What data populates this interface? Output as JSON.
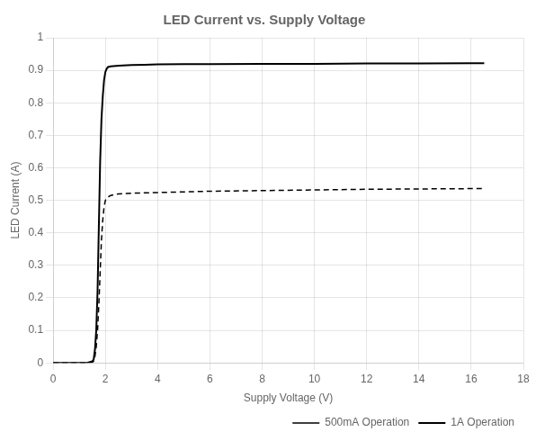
{
  "chart_data": {
    "type": "line",
    "title": "LED Current vs. Supply Voltage",
    "x_label": "Supply Voltage (V)",
    "y_label": "LED Current (A)",
    "xlim": [
      0,
      18
    ],
    "ylim": [
      0,
      1
    ],
    "xticks": [
      0,
      2,
      4,
      6,
      8,
      10,
      12,
      14,
      16,
      18
    ],
    "yticks": [
      0,
      0.1,
      0.2,
      0.3,
      0.4,
      0.5,
      0.6,
      0.7,
      0.8,
      0.9,
      1
    ],
    "grid": true,
    "legend": "lower right",
    "series": [
      {
        "name": "500mA Operation",
        "color": "#000000",
        "line_style": "dashed",
        "x": [
          0,
          1.3,
          1.5,
          1.55,
          1.6,
          1.65,
          1.7,
          1.75,
          1.8,
          1.85,
          1.9,
          1.95,
          2.0,
          2.1,
          2.2,
          2.5,
          3.0,
          4.0,
          5.0,
          6.0,
          8.0,
          10.0,
          12.0,
          14.0,
          16.0,
          16.5
        ],
        "values": [
          0,
          0,
          0.002,
          0.005,
          0.02,
          0.05,
          0.1,
          0.18,
          0.28,
          0.38,
          0.44,
          0.48,
          0.5,
          0.51,
          0.515,
          0.52,
          0.522,
          0.524,
          0.526,
          0.528,
          0.53,
          0.532,
          0.534,
          0.535,
          0.536,
          0.536
        ]
      },
      {
        "name": "1A Operation",
        "color": "#000000",
        "line_style": "solid",
        "x": [
          0,
          1.3,
          1.5,
          1.55,
          1.6,
          1.65,
          1.7,
          1.75,
          1.8,
          1.85,
          1.9,
          1.95,
          2.0,
          2.05,
          2.1,
          2.2,
          2.5,
          3.0,
          3.5,
          4.0,
          5.0,
          6.0,
          8.0,
          10.0,
          12.0,
          14.0,
          16.0,
          16.5
        ],
        "values": [
          0,
          0,
          0.005,
          0.01,
          0.04,
          0.1,
          0.22,
          0.42,
          0.62,
          0.75,
          0.82,
          0.87,
          0.895,
          0.905,
          0.91,
          0.912,
          0.914,
          0.916,
          0.917,
          0.918,
          0.919,
          0.919,
          0.92,
          0.92,
          0.921,
          0.921,
          0.922,
          0.922
        ]
      }
    ]
  }
}
